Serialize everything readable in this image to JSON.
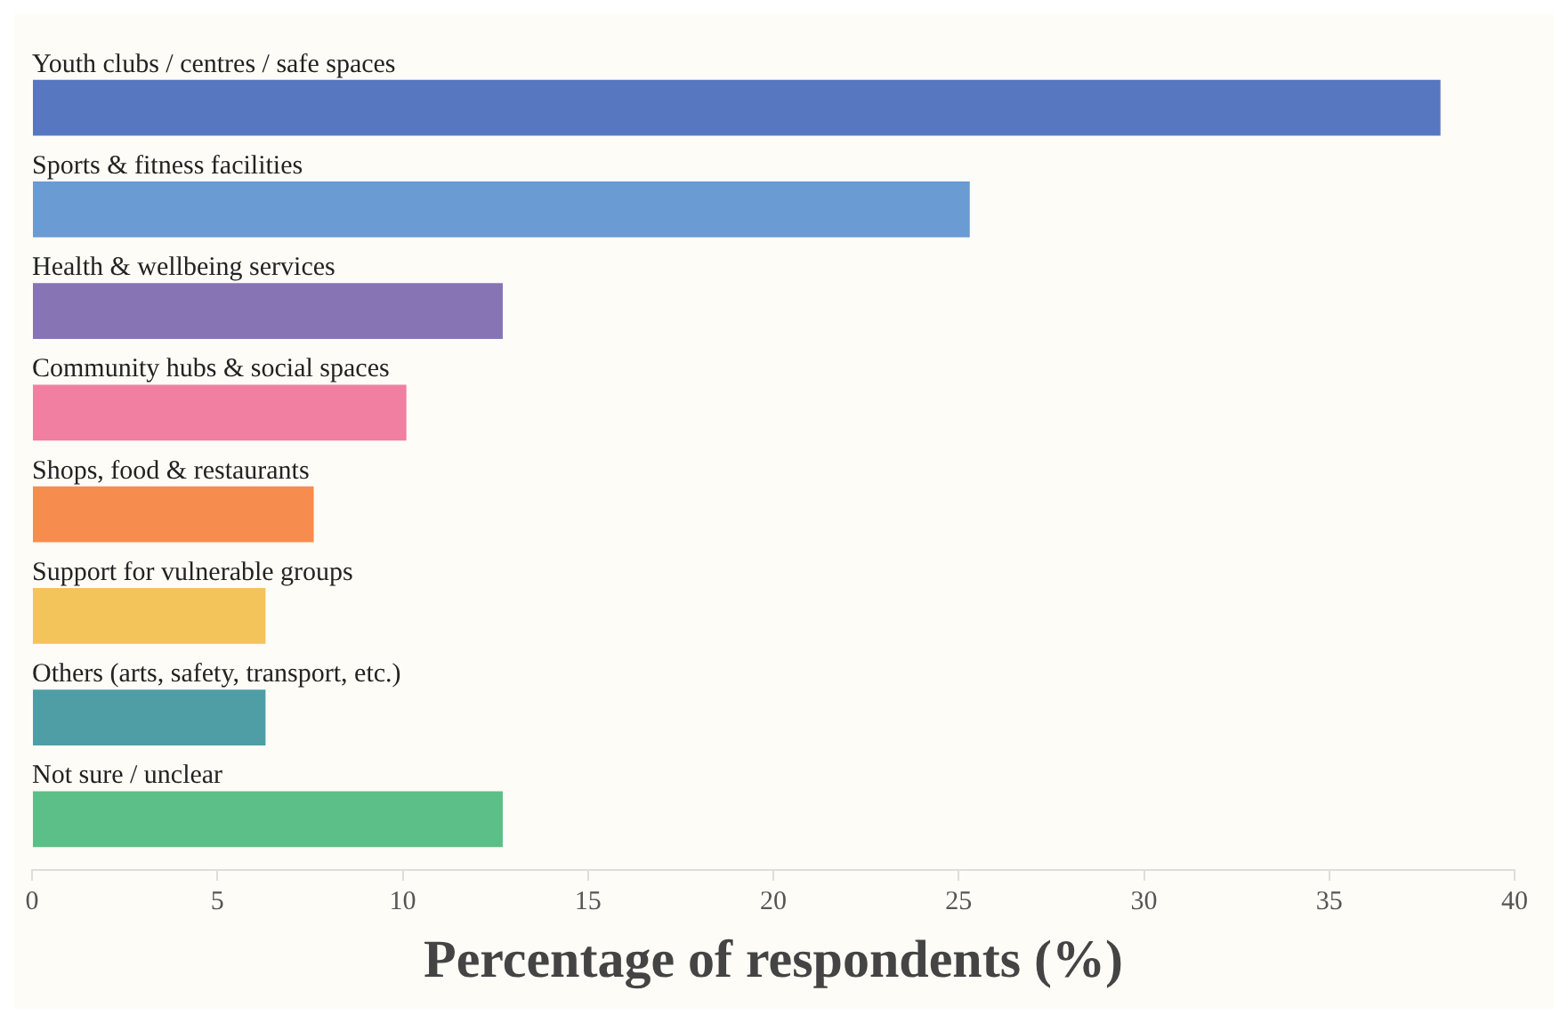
{
  "chart_data": {
    "type": "bar",
    "orientation": "horizontal",
    "xlabel": "Percentage of respondents (%)",
    "categories": [
      "Youth clubs / centres / safe spaces",
      "Sports & fitness facilities",
      "Health & wellbeing services",
      "Community hubs & social spaces",
      "Shops, food & restaurants",
      "Support for vulnerable groups",
      "Others (arts, safety, transport, etc.)",
      "Not sure / unclear"
    ],
    "values": [
      38.0,
      25.3,
      12.7,
      10.1,
      7.6,
      6.3,
      6.3,
      12.7
    ],
    "colors": [
      "#5778c0",
      "#6a9bd3",
      "#8674b5",
      "#f07fa1",
      "#f78c4f",
      "#f3c45a",
      "#4f9ea6",
      "#5bbf87"
    ],
    "xlim": [
      0,
      40
    ],
    "xticks": [
      0,
      5,
      10,
      15,
      20,
      25,
      30,
      35,
      40
    ],
    "grid": false,
    "legend": false
  }
}
